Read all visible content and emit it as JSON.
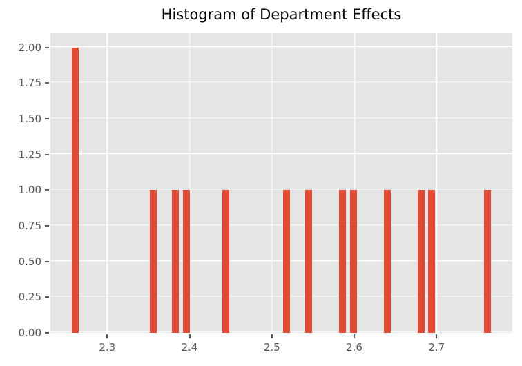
{
  "chart_data": {
    "type": "bar",
    "subtype": "histogram",
    "title": "Histogram of Department Effects",
    "xlabel": "",
    "ylabel": "",
    "xlim": [
      2.231,
      2.792
    ],
    "ylim": [
      0,
      2.1
    ],
    "grid": true,
    "legend": false,
    "x_ticks": [
      {
        "value": 2.3,
        "label": "2.3"
      },
      {
        "value": 2.4,
        "label": "2.4"
      },
      {
        "value": 2.5,
        "label": "2.5"
      },
      {
        "value": 2.6,
        "label": "2.6"
      },
      {
        "value": 2.7,
        "label": "2.7"
      }
    ],
    "y_ticks": [
      {
        "value": 0.0,
        "label": "0.00"
      },
      {
        "value": 0.25,
        "label": "0.25"
      },
      {
        "value": 0.5,
        "label": "0.50"
      },
      {
        "value": 0.75,
        "label": "0.75"
      },
      {
        "value": 1.0,
        "label": "1.00"
      },
      {
        "value": 1.25,
        "label": "1.25"
      },
      {
        "value": 1.5,
        "label": "1.50"
      },
      {
        "value": 1.75,
        "label": "1.75"
      },
      {
        "value": 2.0,
        "label": "2.00"
      }
    ],
    "bar_width": 0.0084,
    "bars": [
      {
        "x": 2.261,
        "count": 2
      },
      {
        "x": 2.356,
        "count": 1
      },
      {
        "x": 2.383,
        "count": 1
      },
      {
        "x": 2.396,
        "count": 1
      },
      {
        "x": 2.444,
        "count": 1
      },
      {
        "x": 2.518,
        "count": 1
      },
      {
        "x": 2.545,
        "count": 1
      },
      {
        "x": 2.586,
        "count": 1
      },
      {
        "x": 2.599,
        "count": 1
      },
      {
        "x": 2.64,
        "count": 1
      },
      {
        "x": 2.681,
        "count": 1
      },
      {
        "x": 2.694,
        "count": 1
      },
      {
        "x": 2.762,
        "count": 1
      }
    ],
    "colors": {
      "bar": "#E24A33",
      "plot_background": "#E5E5E5",
      "figure_background": "#FFFFFF",
      "grid": "#FFFFFF",
      "tick": "#555555",
      "tick_label": "#555555",
      "title": "#000000"
    }
  }
}
